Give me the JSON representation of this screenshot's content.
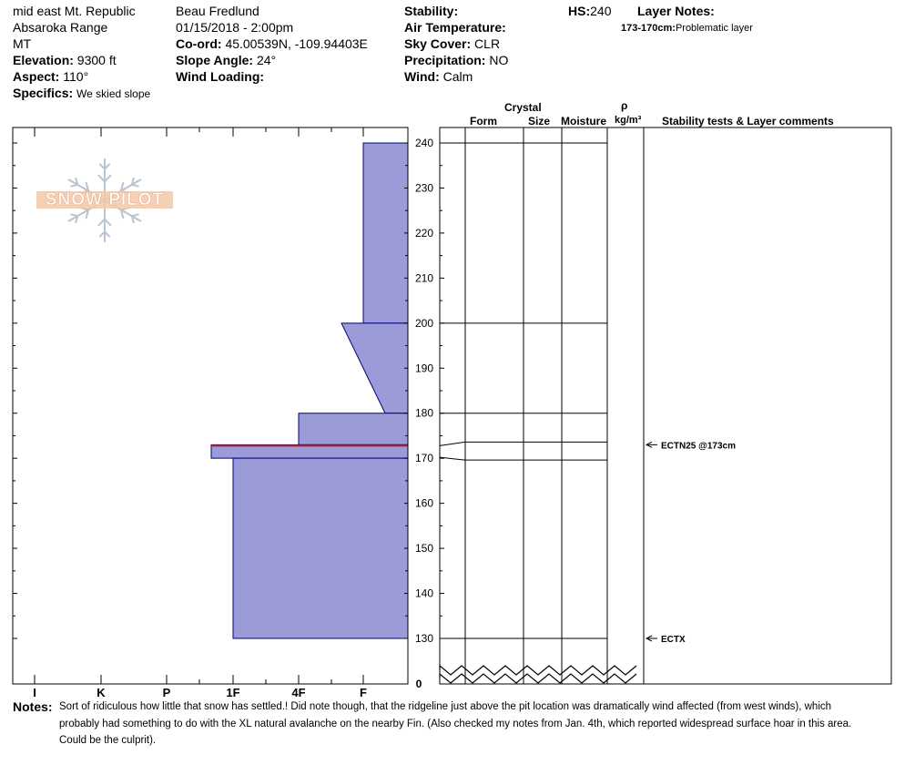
{
  "header": {
    "location": "mid east Mt. Republic",
    "range": "Absaroka Range",
    "state": "MT",
    "elevation_label": "Elevation:",
    "elevation_value": "9300 ft",
    "aspect_label": "Aspect:",
    "aspect_value": "110°",
    "specifics_label": "Specifics:",
    "specifics_value": "We skied slope",
    "observer": "Beau  Fredlund",
    "datetime": "01/15/2018 - 2:00pm",
    "coord_label": "Co-ord:",
    "coord_value": "45.00539N, -109.94403E",
    "slope_label": "Slope Angle:",
    "slope_value": "24°",
    "wind_loading_label": "Wind Loading:",
    "wind_loading_value": "",
    "stability_label": "Stability:",
    "stability_value": "",
    "air_temp_label": "Air Temperature:",
    "air_temp_value": "",
    "sky_label": "Sky Cover:",
    "sky_value": "CLR",
    "precip_label": "Precipitation:",
    "precip_value": "NO",
    "wind_label": "Wind:",
    "wind_value": "Calm",
    "hs_label": "HS:",
    "hs_value": "240",
    "layer_notes_label": "Layer Notes:",
    "layer_note_range": "173-170cm:",
    "layer_note_text": "Problematic layer"
  },
  "logo": {
    "text": "SNOW PILOT"
  },
  "columns": {
    "crystal": "Crystal",
    "form": "Form",
    "size": "Size",
    "moisture": "Moisture",
    "rho": "ρ",
    "density_unit": "kg/m³",
    "stability_comments": "Stability tests & Layer comments"
  },
  "notes": {
    "label": "Notes:",
    "lines": [
      "Sort of ridiculous how little that snow has settled.!  Did note though, that the ridgeline just above the pit location was dramatically wind affected (from west winds), which",
      "probably had something to do with the XL natural avalanche on the nearby Fin.  (Also checked my notes from Jan. 4th, which reported widespread surface hoar in this area.",
      " Could be the culprit)."
    ]
  },
  "colors": {
    "hardness_fill": "#9b9bd8",
    "hardness_stroke": "#00007f",
    "problem_layer": "#b22222",
    "logo_fill": "#f2c9a8",
    "logo_snowflake": "#b8c4d0"
  },
  "chart_data": {
    "type": "area",
    "title": "",
    "x_axis": {
      "categories": [
        "I",
        "K",
        "P",
        "1F",
        "4F",
        "F"
      ],
      "orientation": "reversed"
    },
    "y_axis": {
      "unit": "cm",
      "range": [
        130,
        240
      ],
      "ticks": [
        130,
        140,
        150,
        160,
        170,
        180,
        190,
        200,
        210,
        220,
        230,
        240
      ],
      "base_label": "0"
    },
    "hardness_profile": [
      {
        "top": 240,
        "bottom": 200,
        "hardness_top": "F",
        "hardness_bottom": "F"
      },
      {
        "top": 200,
        "bottom": 180,
        "hardness_top": "F+",
        "hardness_bottom": "F-"
      },
      {
        "top": 180,
        "bottom": 173,
        "hardness_top": "4F",
        "hardness_bottom": "4F"
      },
      {
        "top": 173,
        "bottom": 170,
        "hardness_top": "1F+",
        "hardness_bottom": "1F+"
      },
      {
        "top": 170,
        "bottom": 130,
        "hardness_top": "1F",
        "hardness_bottom": "1F"
      }
    ],
    "layer_boundaries": [
      240,
      200,
      180,
      173,
      170,
      130
    ],
    "problem_layer": {
      "top": 173,
      "bottom": 170
    },
    "stability_tests": [
      {
        "depth": 173,
        "label": "ECTN25 @173cm"
      },
      {
        "depth": 130,
        "label": "ECTX"
      }
    ]
  }
}
